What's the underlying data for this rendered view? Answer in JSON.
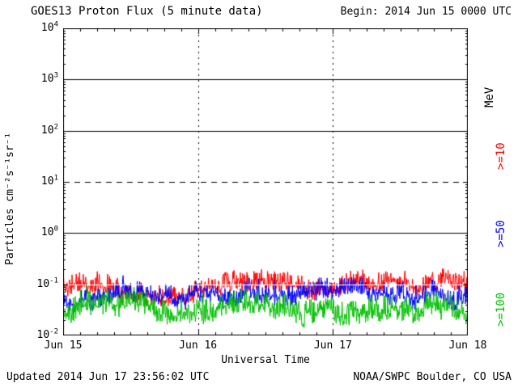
{
  "header": {
    "title": "GOES13 Proton Flux (5 minute data)",
    "begin": "Begin: 2014 Jun 15 0000 UTC"
  },
  "footer": {
    "updated": "Updated 2014 Jun 17 23:56:02 UTC",
    "source": "NOAA/SWPC Boulder, CO USA"
  },
  "chart_data": {
    "type": "line",
    "title": "GOES13 Proton Flux (5 minute data)",
    "xlabel": "Universal Time",
    "ylabel": "Particles cm⁻²s⁻¹sr⁻¹",
    "x_ticks": [
      "Jun 15",
      "Jun 16",
      "Jun 17",
      "Jun 18"
    ],
    "x_days": 3,
    "points_per_day": 288,
    "y_tick_base": "10",
    "y_tick_exponents": [
      4,
      3,
      2,
      1,
      0,
      -1,
      -2
    ],
    "ylim_log": [
      -2,
      4
    ],
    "y_scale": "log",
    "floor_log": -2,
    "background": "#ffffff",
    "grid": {
      "hlines": [
        {
          "log": 3,
          "style": "solid",
          "color": "#000000"
        },
        {
          "log": 2,
          "style": "solid",
          "color": "#000000"
        },
        {
          "log": 1,
          "style": "dashed",
          "color": "#000000"
        },
        {
          "log": 0,
          "style": "solid",
          "color": "#000000"
        },
        {
          "log": -1,
          "style": "solid",
          "color": "#ffffff",
          "above_data": true
        }
      ],
      "vlines_at_days": [
        1,
        2
      ],
      "vline_style": "dotted"
    },
    "legend": {
      "unit": "MeV",
      "entries": [
        {
          "label": ">=10",
          "color": "#fe0000"
        },
        {
          "label": ">=50",
          "color": "#0000fe"
        },
        {
          "label": ">=100",
          "color": "#00c000"
        }
      ],
      "position": "right"
    },
    "series": [
      {
        "name": ">=10 MeV protons",
        "color": "#fe0000",
        "base_log": -1.02,
        "noise_amp": 0.17,
        "walk_amp": 0.06,
        "seed": 11,
        "mean_flux": 0.1,
        "approx_flux_range": [
          0.05,
          0.3
        ]
      },
      {
        "name": ">=50 MeV protons",
        "color": "#0000fe",
        "base_log": -1.22,
        "noise_amp": 0.17,
        "walk_amp": 0.06,
        "seed": 22,
        "mean_flux": 0.06,
        "approx_flux_range": [
          0.03,
          0.15
        ]
      },
      {
        "name": ">=100 MeV protons",
        "color": "#00c000",
        "base_log": -1.58,
        "noise_amp": 0.2,
        "walk_amp": 0.06,
        "seed": 33,
        "mean_flux": 0.026,
        "approx_flux_range": [
          0.01,
          0.06
        ]
      }
    ]
  }
}
